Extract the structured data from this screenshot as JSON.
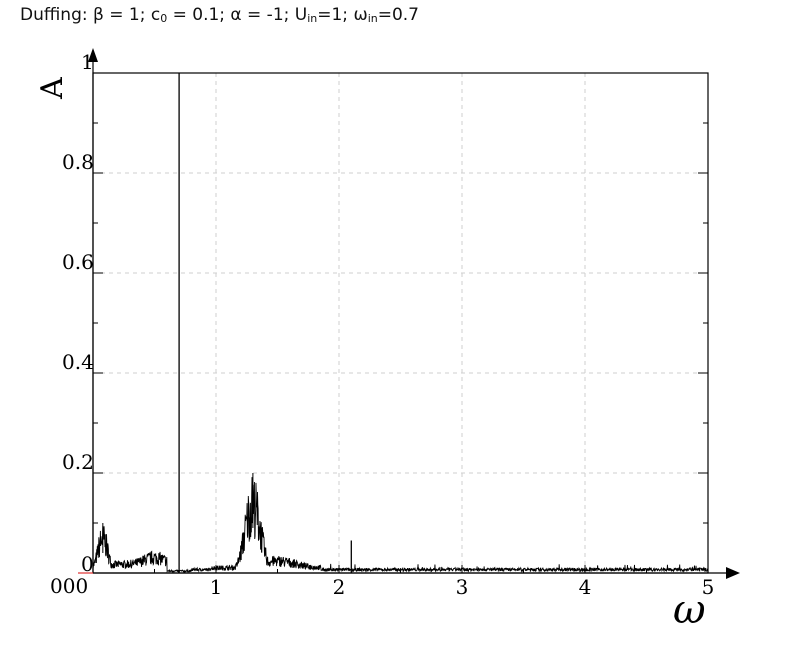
{
  "title": {
    "prefix": "Duffing: β = 1; c",
    "c_sub": "0",
    "part2": " = 0.1; α = -1; U",
    "u_sub": "in",
    "part3": "=1; ω",
    "w_sub": "in",
    "part4": "=0.7"
  },
  "chart_data": {
    "type": "line",
    "title": "Duffing: β = 1; c0 = 0.1; α = -1; Uin=1; ωin=0.7",
    "xlabel": "ω",
    "ylabel": "A",
    "xlim": [
      0,
      5
    ],
    "ylim": [
      0,
      1
    ],
    "grid": true,
    "x_ticks": [
      0,
      1,
      2,
      3,
      4,
      5
    ],
    "x_tick_labels": [
      "0",
      "1",
      "2",
      "3",
      "4",
      "5"
    ],
    "y_ticks": [
      0,
      0.2,
      0.4,
      0.6,
      0.8,
      1
    ],
    "y_tick_labels": [
      "0",
      "0.2",
      "0.4",
      "0.6",
      "0.8",
      "1"
    ],
    "origin_overlap_label": "000",
    "line_color": "#000000",
    "peaks": [
      {
        "x": 0.08,
        "y": 0.1
      },
      {
        "x": 0.5,
        "y": 0.045
      },
      {
        "x": 0.7,
        "y": 1.0
      },
      {
        "x": 1.3,
        "y": 0.2
      },
      {
        "x": 2.1,
        "y": 0.065
      }
    ],
    "noise_floor": 0.01
  }
}
